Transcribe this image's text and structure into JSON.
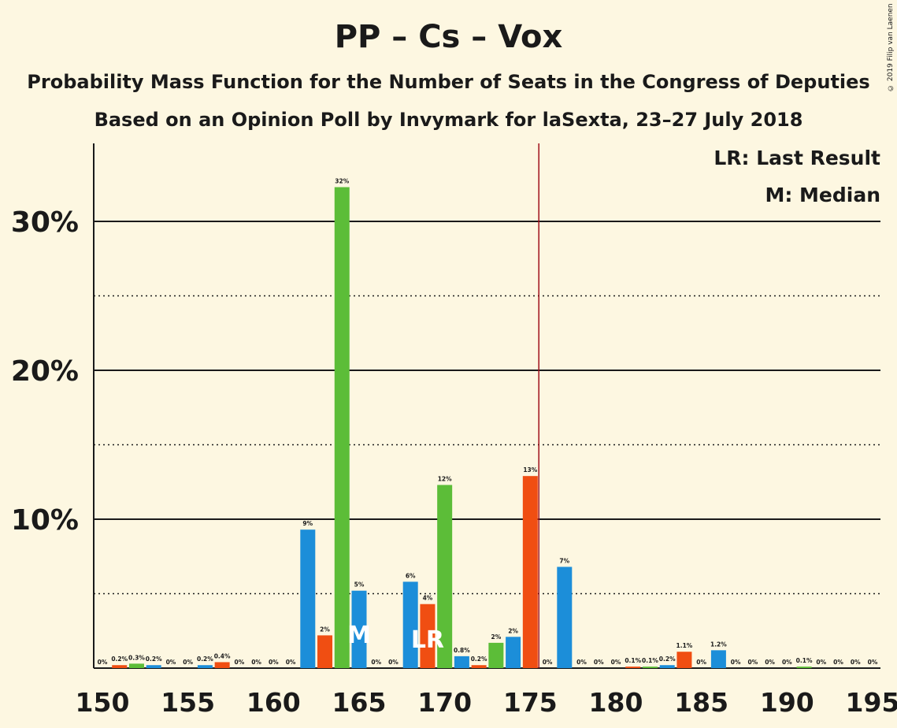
{
  "title": "PP – Cs – Vox",
  "subtitle_1": "Probability Mass Function for the Number of Seats in the Congress of Deputies",
  "subtitle_2": "Based on an Opinion Poll by Invymark for laSexta, 23–27 July 2018",
  "copyright": "© 2019 Filip van Laenen",
  "legend": {
    "last_result": "LR: Last Result",
    "median": "M: Median"
  },
  "colors": {
    "background": "#fdf7e1",
    "blue": "#1c8ed9",
    "orange": "#f04e12",
    "green": "#5cbd38",
    "majority_line": "#a0101a",
    "text": "#1a1a1a"
  },
  "chart_data": {
    "type": "bar",
    "xlabel": "",
    "ylabel": "",
    "xlim": [
      150,
      195
    ],
    "ylim": [
      0,
      35
    ],
    "x_ticks": [
      "150",
      "155",
      "160",
      "165",
      "170",
      "175",
      "180",
      "185",
      "190",
      "195"
    ],
    "y_ticks": [
      "10%",
      "20%",
      "30%"
    ],
    "y_tick_values": [
      10,
      20,
      30
    ],
    "dotted_grid_values": [
      5,
      15,
      25
    ],
    "majority_threshold": 176,
    "median_seat": 165,
    "median_marker": "M",
    "last_result_seat": 169,
    "last_result_marker": "LR",
    "color_cycle": [
      "blue",
      "orange",
      "green"
    ],
    "bars": [
      {
        "seat": 150,
        "value": 0.0,
        "label": "0%"
      },
      {
        "seat": 151,
        "value": 0.2,
        "label": "0.2%"
      },
      {
        "seat": 152,
        "value": 0.3,
        "label": "0.3%"
      },
      {
        "seat": 153,
        "value": 0.2,
        "label": "0.2%"
      },
      {
        "seat": 154,
        "value": 0.0,
        "label": "0%"
      },
      {
        "seat": 155,
        "value": 0.0,
        "label": "0%"
      },
      {
        "seat": 156,
        "value": 0.2,
        "label": "0.2%"
      },
      {
        "seat": 157,
        "value": 0.4,
        "label": "0.4%"
      },
      {
        "seat": 158,
        "value": 0.0,
        "label": "0%"
      },
      {
        "seat": 159,
        "value": 0.0,
        "label": "0%"
      },
      {
        "seat": 160,
        "value": 0.0,
        "label": "0%"
      },
      {
        "seat": 161,
        "value": 0.0,
        "label": "0%"
      },
      {
        "seat": 162,
        "value": 9.3,
        "label": "9%"
      },
      {
        "seat": 163,
        "value": 2.2,
        "label": "2%"
      },
      {
        "seat": 164,
        "value": 32.3,
        "label": "32%"
      },
      {
        "seat": 165,
        "value": 5.2,
        "label": "5%"
      },
      {
        "seat": 166,
        "value": 0.0,
        "label": "0%"
      },
      {
        "seat": 167,
        "value": 0.0,
        "label": "0%"
      },
      {
        "seat": 168,
        "value": 5.8,
        "label": "6%"
      },
      {
        "seat": 169,
        "value": 4.3,
        "label": "4%"
      },
      {
        "seat": 170,
        "value": 12.3,
        "label": "12%"
      },
      {
        "seat": 171,
        "value": 0.8,
        "label": "0.8%"
      },
      {
        "seat": 172,
        "value": 0.2,
        "label": "0.2%"
      },
      {
        "seat": 173,
        "value": 1.7,
        "label": "2%"
      },
      {
        "seat": 174,
        "value": 2.1,
        "label": "2%"
      },
      {
        "seat": 175,
        "value": 12.9,
        "label": "13%"
      },
      {
        "seat": 176,
        "value": 0.0,
        "label": "0%"
      },
      {
        "seat": 177,
        "value": 6.8,
        "label": "7%"
      },
      {
        "seat": 178,
        "value": 0.0,
        "label": "0%"
      },
      {
        "seat": 179,
        "value": 0.0,
        "label": "0%"
      },
      {
        "seat": 180,
        "value": 0.0,
        "label": "0%"
      },
      {
        "seat": 181,
        "value": 0.1,
        "label": "0.1%"
      },
      {
        "seat": 182,
        "value": 0.1,
        "label": "0.1%"
      },
      {
        "seat": 183,
        "value": 0.2,
        "label": "0.2%"
      },
      {
        "seat": 184,
        "value": 1.1,
        "label": "1.1%"
      },
      {
        "seat": 185,
        "value": 0.0,
        "label": "0%"
      },
      {
        "seat": 186,
        "value": 1.2,
        "label": "1.2%"
      },
      {
        "seat": 187,
        "value": 0.0,
        "label": "0%"
      },
      {
        "seat": 188,
        "value": 0.0,
        "label": "0%"
      },
      {
        "seat": 189,
        "value": 0.0,
        "label": "0%"
      },
      {
        "seat": 190,
        "value": 0.0,
        "label": "0%"
      },
      {
        "seat": 191,
        "value": 0.1,
        "label": "0.1%"
      },
      {
        "seat": 192,
        "value": 0.0,
        "label": "0%"
      },
      {
        "seat": 193,
        "value": 0.0,
        "label": "0%"
      },
      {
        "seat": 194,
        "value": 0.0,
        "label": "0%"
      },
      {
        "seat": 195,
        "value": 0.0,
        "label": "0%"
      }
    ]
  }
}
